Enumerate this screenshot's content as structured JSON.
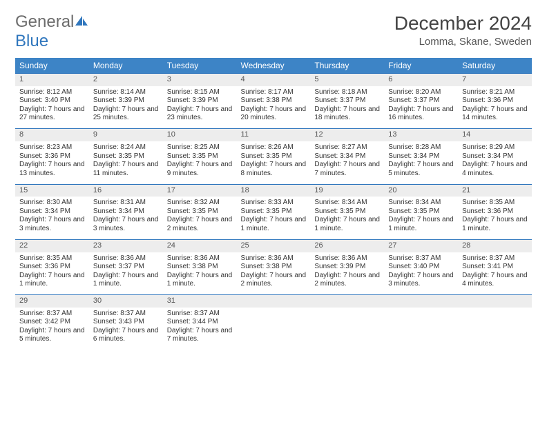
{
  "brand": {
    "general": "General",
    "blue": "Blue"
  },
  "title": "December 2024",
  "location": "Lomma, Skane, Sweden",
  "headers": [
    "Sunday",
    "Monday",
    "Tuesday",
    "Wednesday",
    "Thursday",
    "Friday",
    "Saturday"
  ],
  "colors": {
    "header_bg": "#3d84c6",
    "accent": "#2f76bd",
    "daynum_bg": "#ededed"
  },
  "weeks": [
    [
      {
        "n": "1",
        "sr": "8:12 AM",
        "ss": "3:40 PM",
        "dl": "7 hours and 27 minutes."
      },
      {
        "n": "2",
        "sr": "8:14 AM",
        "ss": "3:39 PM",
        "dl": "7 hours and 25 minutes."
      },
      {
        "n": "3",
        "sr": "8:15 AM",
        "ss": "3:39 PM",
        "dl": "7 hours and 23 minutes."
      },
      {
        "n": "4",
        "sr": "8:17 AM",
        "ss": "3:38 PM",
        "dl": "7 hours and 20 minutes."
      },
      {
        "n": "5",
        "sr": "8:18 AM",
        "ss": "3:37 PM",
        "dl": "7 hours and 18 minutes."
      },
      {
        "n": "6",
        "sr": "8:20 AM",
        "ss": "3:37 PM",
        "dl": "7 hours and 16 minutes."
      },
      {
        "n": "7",
        "sr": "8:21 AM",
        "ss": "3:36 PM",
        "dl": "7 hours and 14 minutes."
      }
    ],
    [
      {
        "n": "8",
        "sr": "8:23 AM",
        "ss": "3:36 PM",
        "dl": "7 hours and 13 minutes."
      },
      {
        "n": "9",
        "sr": "8:24 AM",
        "ss": "3:35 PM",
        "dl": "7 hours and 11 minutes."
      },
      {
        "n": "10",
        "sr": "8:25 AM",
        "ss": "3:35 PM",
        "dl": "7 hours and 9 minutes."
      },
      {
        "n": "11",
        "sr": "8:26 AM",
        "ss": "3:35 PM",
        "dl": "7 hours and 8 minutes."
      },
      {
        "n": "12",
        "sr": "8:27 AM",
        "ss": "3:34 PM",
        "dl": "7 hours and 7 minutes."
      },
      {
        "n": "13",
        "sr": "8:28 AM",
        "ss": "3:34 PM",
        "dl": "7 hours and 5 minutes."
      },
      {
        "n": "14",
        "sr": "8:29 AM",
        "ss": "3:34 PM",
        "dl": "7 hours and 4 minutes."
      }
    ],
    [
      {
        "n": "15",
        "sr": "8:30 AM",
        "ss": "3:34 PM",
        "dl": "7 hours and 3 minutes."
      },
      {
        "n": "16",
        "sr": "8:31 AM",
        "ss": "3:34 PM",
        "dl": "7 hours and 3 minutes."
      },
      {
        "n": "17",
        "sr": "8:32 AM",
        "ss": "3:35 PM",
        "dl": "7 hours and 2 minutes."
      },
      {
        "n": "18",
        "sr": "8:33 AM",
        "ss": "3:35 PM",
        "dl": "7 hours and 1 minute."
      },
      {
        "n": "19",
        "sr": "8:34 AM",
        "ss": "3:35 PM",
        "dl": "7 hours and 1 minute."
      },
      {
        "n": "20",
        "sr": "8:34 AM",
        "ss": "3:35 PM",
        "dl": "7 hours and 1 minute."
      },
      {
        "n": "21",
        "sr": "8:35 AM",
        "ss": "3:36 PM",
        "dl": "7 hours and 1 minute."
      }
    ],
    [
      {
        "n": "22",
        "sr": "8:35 AM",
        "ss": "3:36 PM",
        "dl": "7 hours and 1 minute."
      },
      {
        "n": "23",
        "sr": "8:36 AM",
        "ss": "3:37 PM",
        "dl": "7 hours and 1 minute."
      },
      {
        "n": "24",
        "sr": "8:36 AM",
        "ss": "3:38 PM",
        "dl": "7 hours and 1 minute."
      },
      {
        "n": "25",
        "sr": "8:36 AM",
        "ss": "3:38 PM",
        "dl": "7 hours and 2 minutes."
      },
      {
        "n": "26",
        "sr": "8:36 AM",
        "ss": "3:39 PM",
        "dl": "7 hours and 2 minutes."
      },
      {
        "n": "27",
        "sr": "8:37 AM",
        "ss": "3:40 PM",
        "dl": "7 hours and 3 minutes."
      },
      {
        "n": "28",
        "sr": "8:37 AM",
        "ss": "3:41 PM",
        "dl": "7 hours and 4 minutes."
      }
    ],
    [
      {
        "n": "29",
        "sr": "8:37 AM",
        "ss": "3:42 PM",
        "dl": "7 hours and 5 minutes."
      },
      {
        "n": "30",
        "sr": "8:37 AM",
        "ss": "3:43 PM",
        "dl": "7 hours and 6 minutes."
      },
      {
        "n": "31",
        "sr": "8:37 AM",
        "ss": "3:44 PM",
        "dl": "7 hours and 7 minutes."
      },
      null,
      null,
      null,
      null
    ]
  ],
  "labels": {
    "sunrise": "Sunrise: ",
    "sunset": "Sunset: ",
    "daylight": "Daylight: "
  }
}
